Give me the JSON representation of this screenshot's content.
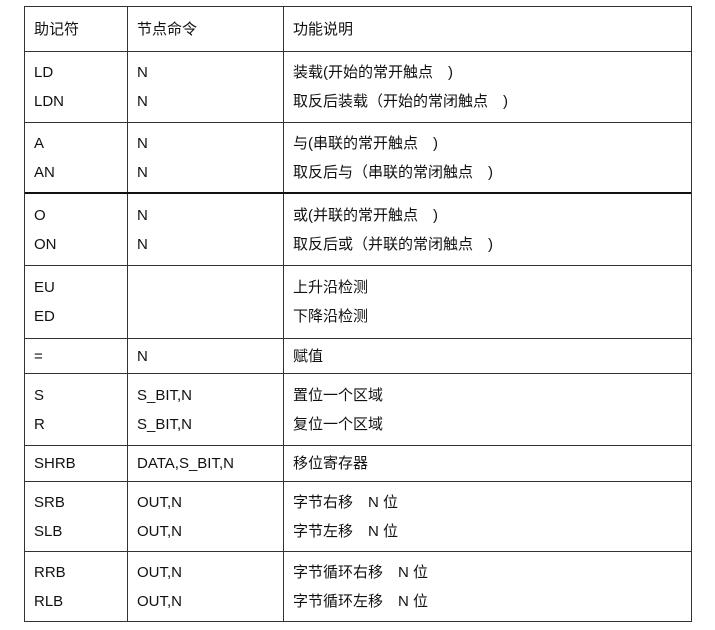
{
  "header": [
    "助记符",
    "节点命令",
    "功能说明"
  ],
  "groups": [
    {
      "rows": [
        [
          "LD",
          "N",
          "装载(开始的常开触点　)"
        ],
        [
          "LDN",
          "N",
          "取反后装载（开始的常闭触点　)"
        ]
      ]
    },
    {
      "rows": [
        [
          "A",
          "N",
          "与(串联的常开触点　)"
        ],
        [
          "AN",
          "N",
          "取反后与（串联的常闭触点　)"
        ]
      ]
    },
    {
      "rows": [
        [
          "O",
          "N",
          "或(并联的常开触点　)"
        ],
        [
          "ON",
          "N",
          "取反后或（并联的常闭触点　)"
        ]
      ]
    },
    {
      "rows": [
        [
          "EU",
          "",
          "上升沿检测"
        ],
        [
          "ED",
          "",
          "下降沿检测"
        ]
      ]
    },
    {
      "rows": [
        [
          "=",
          "N",
          "赋值"
        ]
      ]
    },
    {
      "rows": [
        [
          "S",
          "S_BIT,N",
          "置位一个区域"
        ],
        [
          "R",
          "S_BIT,N",
          "复位一个区域"
        ]
      ]
    },
    {
      "rows": [
        [
          "SHRB",
          "DATA,S_BIT,N",
          "移位寄存器"
        ]
      ]
    },
    {
      "rows": [
        [
          "SRB",
          "OUT,N",
          "字节右移　N 位"
        ],
        [
          "SLB",
          "OUT,N",
          "字节左移　N 位"
        ]
      ]
    },
    {
      "rows": [
        [
          "RRB",
          "OUT,N",
          "字节循环右移　N 位"
        ],
        [
          "RLB",
          "OUT,N",
          "字节循环左移　N 位"
        ]
      ]
    }
  ]
}
